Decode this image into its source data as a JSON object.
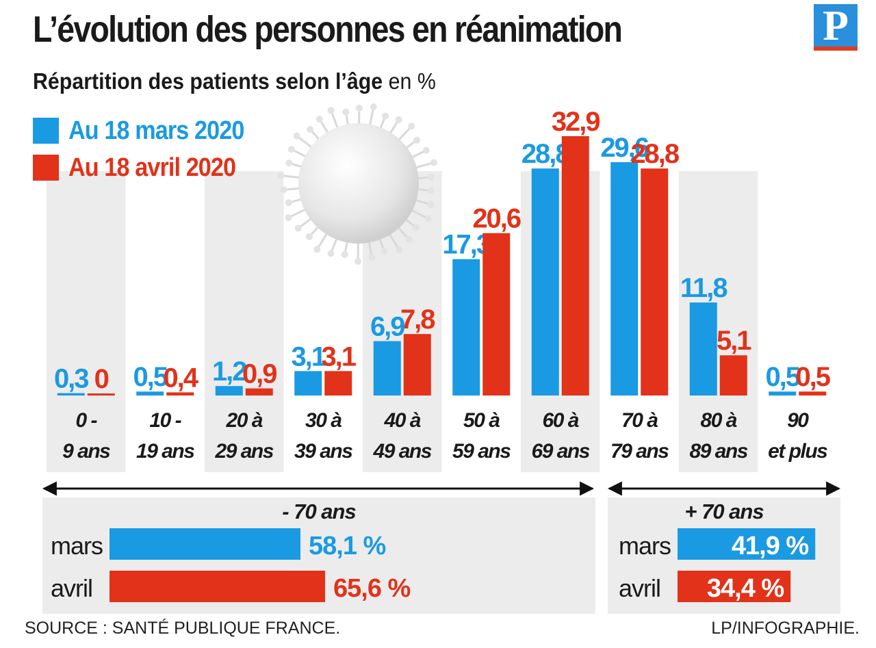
{
  "header": {
    "title": "L’évolution des personnes en réanimation",
    "subtitle_bold": "Répartition des patients selon l’âge",
    "subtitle_unit": " en %",
    "logo_letter": "P"
  },
  "legend": {
    "march_label": "Au 18 mars 2020",
    "april_label": "Au 18 avril 2020"
  },
  "colors": {
    "march": "#1a9ae2",
    "april": "#e2321a",
    "band": "#ececec"
  },
  "chart_data": {
    "type": "bar",
    "title": "L’évolution des personnes en réanimation",
    "subtitle": "Répartition des patients selon l’âge en %",
    "categories": [
      [
        "0 -",
        "9 ans"
      ],
      [
        "10 -",
        "19 ans"
      ],
      [
        "20 à",
        "29 ans"
      ],
      [
        "30 à",
        "39 ans"
      ],
      [
        "40 à",
        "49 ans"
      ],
      [
        "50 à",
        "59 ans"
      ],
      [
        "60 à",
        "69 ans"
      ],
      [
        "70 à",
        "79 ans"
      ],
      [
        "80 à",
        "89 ans"
      ],
      [
        "90",
        "et plus"
      ]
    ],
    "series": [
      {
        "name": "Au 18 mars 2020",
        "values": [
          0.3,
          0.5,
          1.2,
          3.1,
          6.9,
          17.3,
          28.8,
          29.6,
          11.8,
          0.5
        ],
        "labels": [
          "0,3",
          "0,5",
          "1,2",
          "3,1",
          "6,9",
          "17,3",
          "28,8",
          "29,6",
          "11,8",
          "0,5"
        ]
      },
      {
        "name": "Au 18 avril 2020",
        "values": [
          0,
          0.4,
          0.9,
          3.1,
          7.8,
          20.6,
          32.9,
          28.8,
          5.1,
          0.5
        ],
        "labels": [
          "0",
          "0,4",
          "0,9",
          "3,1",
          "7,8",
          "20,6",
          "32,9",
          "28,8",
          "5,1",
          "0,5"
        ]
      }
    ],
    "ylim": [
      0,
      33
    ],
    "legend_position": "top-left",
    "summary": {
      "under70": {
        "label": "- 70 ans",
        "march": 58.1,
        "april": 65.6,
        "march_text": "58,1 %",
        "april_text": "65,6 %"
      },
      "over70": {
        "label": "+ 70 ans",
        "march": 41.9,
        "april": 34.4,
        "march_text": "41,9 %",
        "april_text": "34,4 %"
      },
      "month_labels": [
        "mars",
        "avril"
      ]
    }
  },
  "footer": {
    "source": "SOURCE : SANTÉ PUBLIQUE FRANCE.",
    "credit": "LP/INFOGRAPHIE."
  }
}
